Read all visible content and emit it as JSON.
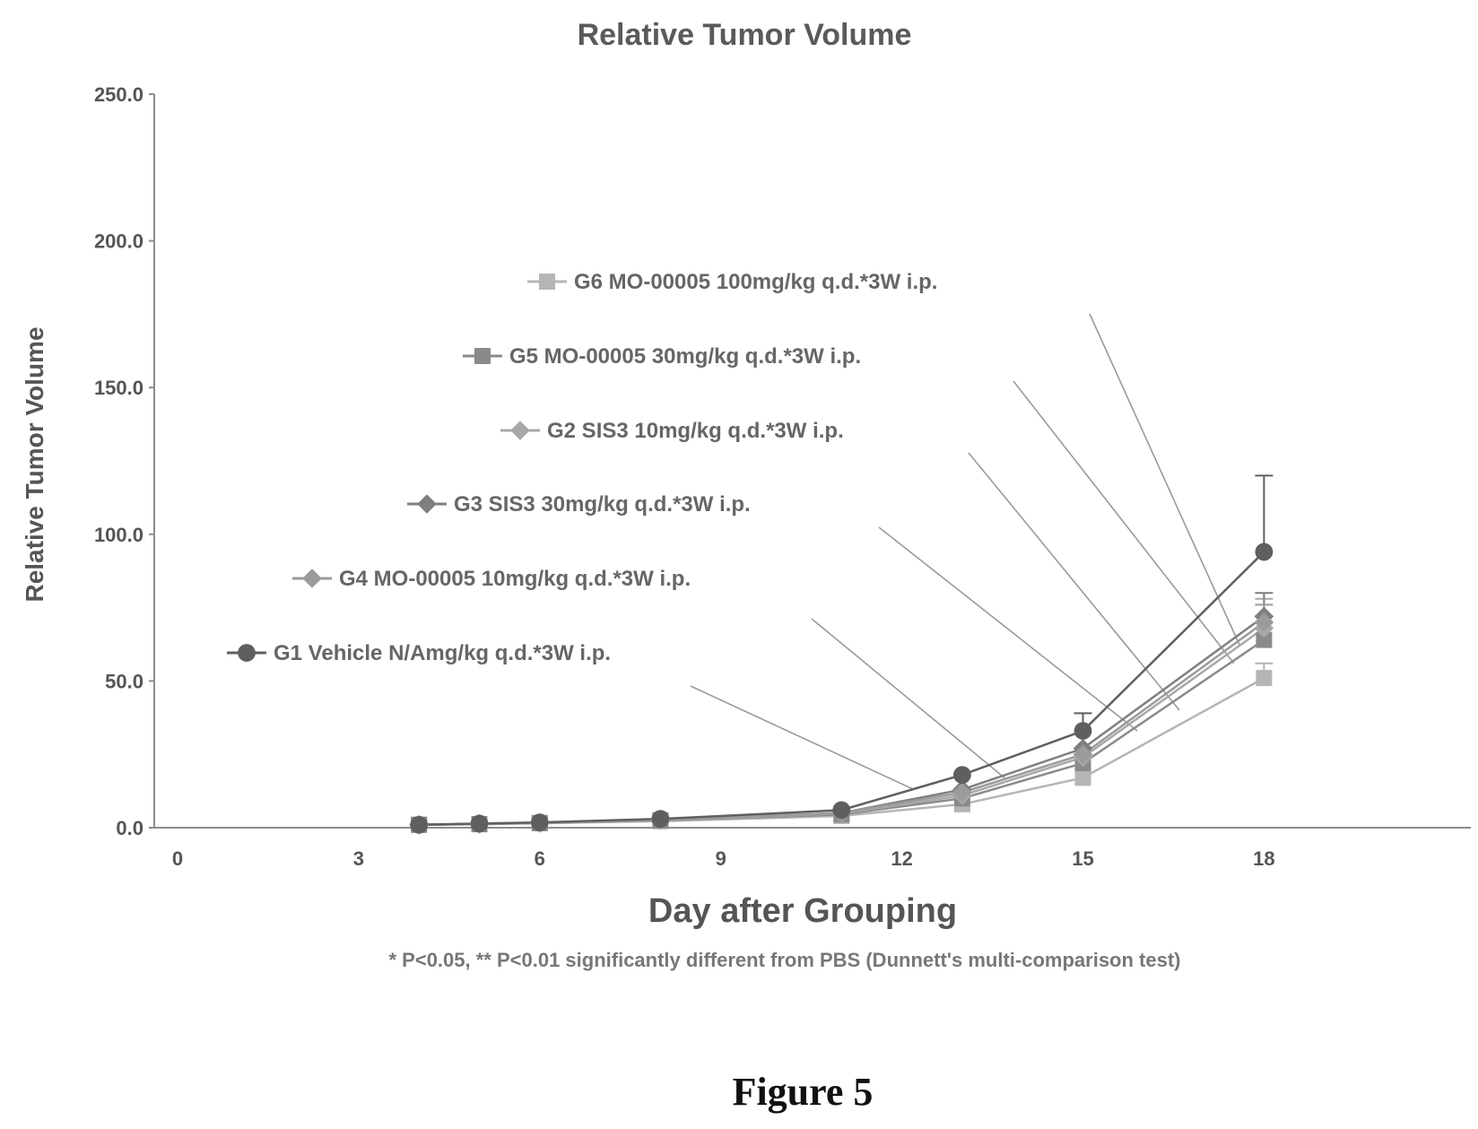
{
  "colors": {
    "axis": "#8c8c8c",
    "text": "#555555",
    "leader": "#9a9a9a"
  },
  "chart_data": {
    "type": "line",
    "title": "Relative Tumor Volume",
    "xlabel": "Day after Grouping",
    "ylabel": "Relative Tumor Volume",
    "xlim": [
      0,
      21
    ],
    "ylim": [
      0,
      250
    ],
    "x_ticks": [
      0,
      3,
      6,
      9,
      12,
      15,
      18
    ],
    "x_tick_labels": [
      "0",
      "3",
      "6",
      "9",
      "12",
      "15",
      "18"
    ],
    "y_ticks": [
      0,
      50,
      100,
      150,
      200,
      250
    ],
    "y_tick_labels": [
      "0.0",
      "50.0",
      "100.0",
      "150.0",
      "200.0",
      "250.0"
    ],
    "grid": false,
    "series": [
      {
        "name": "G6 MO-00005 100mg/kg q.d.*3W i.p.",
        "marker": "square",
        "color": "#b5b5b5",
        "points": [
          [
            4,
            1.0
          ],
          [
            5,
            1.2
          ],
          [
            6,
            1.5
          ],
          [
            8,
            2.2
          ],
          [
            11,
            4.0
          ],
          [
            13,
            8.0
          ],
          [
            15,
            17.0
          ],
          [
            18,
            51.0
          ]
        ],
        "err_up": [
          [
            18,
            56.0
          ]
        ]
      },
      {
        "name": "G5 MO-00005 30mg/kg q.d.*3W i.p.",
        "marker": "square",
        "color": "#8a8a8a",
        "points": [
          [
            4,
            1.0
          ],
          [
            5,
            1.2
          ],
          [
            6,
            1.6
          ],
          [
            8,
            2.5
          ],
          [
            11,
            4.5
          ],
          [
            13,
            10.0
          ],
          [
            15,
            22.0
          ],
          [
            18,
            64.0
          ]
        ],
        "err_up": [
          [
            18,
            72.0
          ]
        ]
      },
      {
        "name": "G2 SIS3 10mg/kg q.d.*3W i.p.",
        "marker": "diamond",
        "color": "#a8a8a8",
        "points": [
          [
            4,
            1.0
          ],
          [
            5,
            1.3
          ],
          [
            6,
            1.6
          ],
          [
            8,
            2.6
          ],
          [
            11,
            4.8
          ],
          [
            13,
            11.0
          ],
          [
            15,
            24.0
          ],
          [
            18,
            68.0
          ]
        ],
        "err_up": [
          [
            18,
            78.0
          ]
        ]
      },
      {
        "name": "G3 SIS3 30mg/kg q.d.*3W i.p.",
        "marker": "diamond",
        "color": "#7f7f7f",
        "points": [
          [
            4,
            1.0
          ],
          [
            5,
            1.3
          ],
          [
            6,
            1.7
          ],
          [
            8,
            2.8
          ],
          [
            11,
            5.0
          ],
          [
            13,
            13.0
          ],
          [
            15,
            27.0
          ],
          [
            18,
            72.0
          ]
        ],
        "err_up": [
          [
            18,
            80.0
          ]
        ]
      },
      {
        "name": "G4 MO-00005 10mg/kg q.d.*3W i.p.",
        "marker": "diamond",
        "color": "#9b9b9b",
        "points": [
          [
            4,
            1.0
          ],
          [
            5,
            1.3
          ],
          [
            6,
            1.6
          ],
          [
            8,
            2.7
          ],
          [
            11,
            5.0
          ],
          [
            13,
            12.0
          ],
          [
            15,
            25.0
          ],
          [
            18,
            70.0
          ]
        ],
        "err_up": [
          [
            18,
            76.0
          ]
        ]
      },
      {
        "name": "G1 Vehicle N/Amg/kg q.d.*3W i.p.",
        "marker": "circle",
        "color": "#5f5f5f",
        "points": [
          [
            4,
            1.0
          ],
          [
            5,
            1.4
          ],
          [
            6,
            1.8
          ],
          [
            8,
            3.0
          ],
          [
            11,
            6.0
          ],
          [
            13,
            18.0
          ],
          [
            15,
            33.0
          ],
          [
            18,
            94.0
          ]
        ],
        "err_up": [
          [
            15,
            39.0
          ],
          [
            18,
            120.0
          ]
        ]
      }
    ],
    "annotations": [
      {
        "text": "* P<0.05, ** P<0.01 significantly different from PBS (Dunnett's multi-comparison test)"
      }
    ]
  },
  "figure_caption": "Figure 5"
}
